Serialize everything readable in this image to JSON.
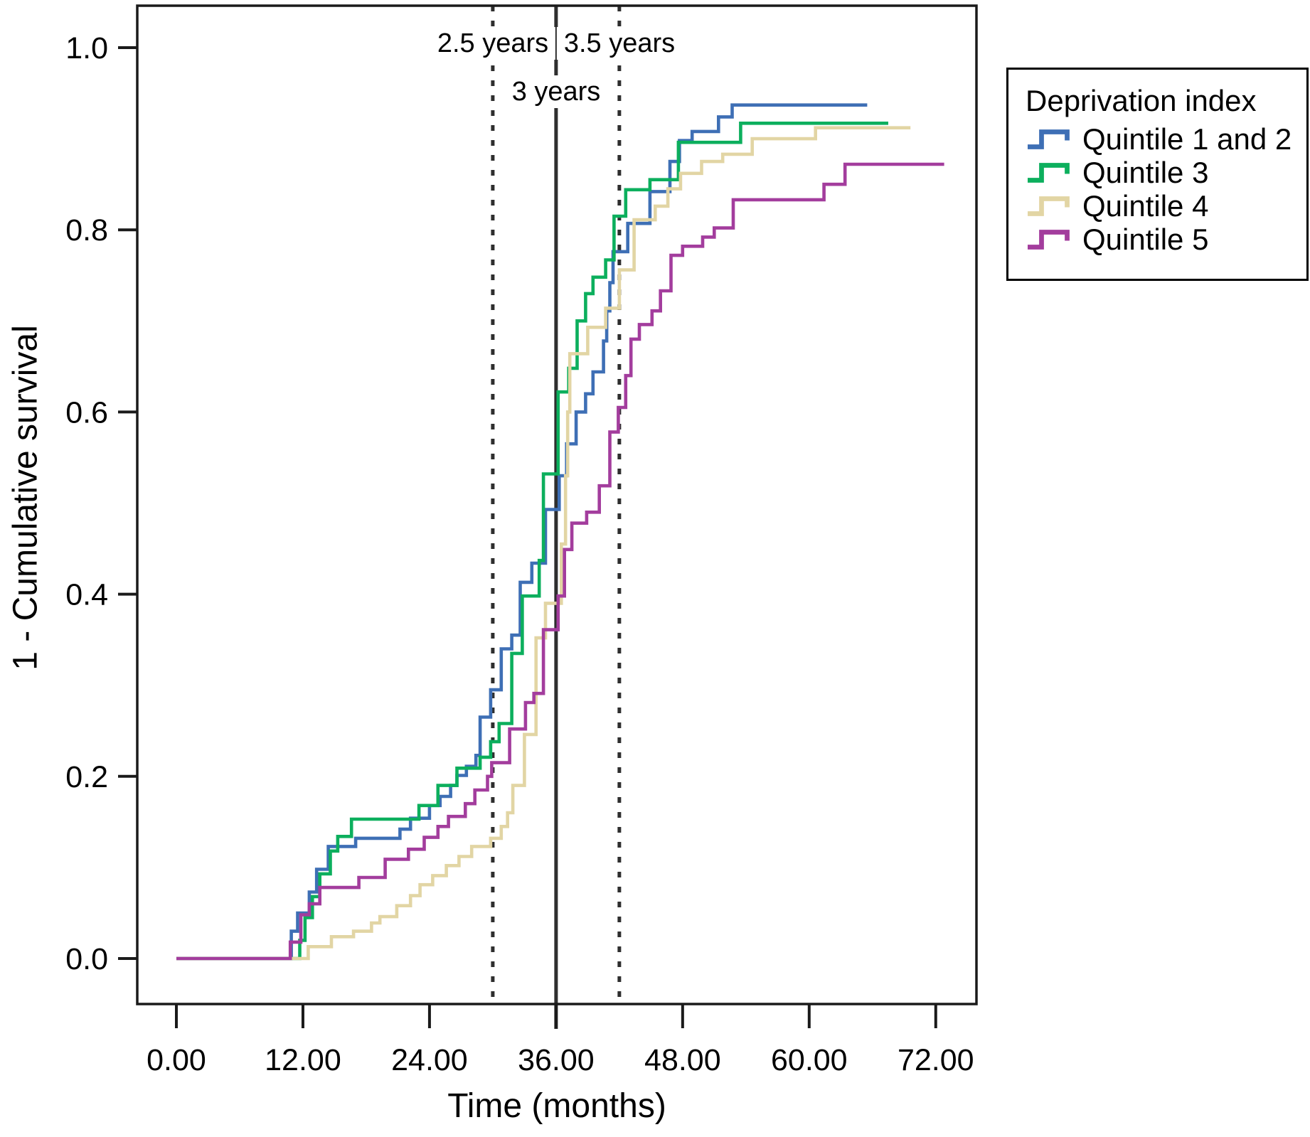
{
  "chart_data": {
    "type": "line",
    "subtype": "step-after",
    "title": "",
    "xlabel": "Time (months)",
    "ylabel": "1 - Cumulative survival",
    "grid": false,
    "xlim": [
      -3.7,
      75.9
    ],
    "ylim": [
      -0.05,
      1.046
    ],
    "x_ticks": [
      0,
      12,
      24,
      36,
      48,
      60,
      72
    ],
    "x_tick_labels": [
      "0.00",
      "12.00",
      "24.00",
      "36.00",
      "48.00",
      "60.00",
      "72.00"
    ],
    "y_ticks": [
      0.0,
      0.2,
      0.4,
      0.6,
      0.8,
      1.0
    ],
    "y_tick_labels": [
      "0.0",
      "0.2",
      "0.4",
      "0.6",
      "0.8",
      "1.0"
    ],
    "legend": {
      "title": "Deprivation index",
      "position": "outside-top-right"
    },
    "annotations": [
      {
        "label": "2.5 years",
        "style": "dotted",
        "x_months": 30
      },
      {
        "label": "3 years",
        "style": "solid",
        "x_months": 36
      },
      {
        "label": "3.5 years",
        "style": "dotted",
        "x_months": 42
      }
    ],
    "colors": {
      "axis": "#1a1a1a",
      "reference_line": "#2e2e2e",
      "text": "#000000"
    },
    "series": [
      {
        "name": "Quintile 1 and 2",
        "color": "#3e6fb5",
        "points": [
          [
            0,
            0
          ],
          [
            10.9,
            0.03
          ],
          [
            11.5,
            0.05
          ],
          [
            12.6,
            0.073
          ],
          [
            13.3,
            0.098
          ],
          [
            14.4,
            0.123
          ],
          [
            17,
            0.132
          ],
          [
            21.2,
            0.142
          ],
          [
            22.2,
            0.154
          ],
          [
            24,
            0.168
          ],
          [
            25,
            0.178
          ],
          [
            26,
            0.19
          ],
          [
            26.6,
            0.201
          ],
          [
            27.5,
            0.211
          ],
          [
            28.4,
            0.223
          ],
          [
            28.8,
            0.265
          ],
          [
            29.8,
            0.295
          ],
          [
            30.8,
            0.34
          ],
          [
            31.8,
            0.355
          ],
          [
            32.6,
            0.413
          ],
          [
            33.7,
            0.434
          ],
          [
            35,
            0.493
          ],
          [
            36.3,
            0.53
          ],
          [
            37,
            0.565
          ],
          [
            37.9,
            0.6
          ],
          [
            38.8,
            0.62
          ],
          [
            39.5,
            0.644
          ],
          [
            40.5,
            0.678
          ],
          [
            40.8,
            0.711
          ],
          [
            41.1,
            0.742
          ],
          [
            41.4,
            0.776
          ],
          [
            42.8,
            0.807
          ],
          [
            44.9,
            0.842
          ],
          [
            46.8,
            0.875
          ],
          [
            47.7,
            0.898
          ],
          [
            48.9,
            0.908
          ],
          [
            51.4,
            0.924
          ],
          [
            52.7,
            0.937
          ],
          [
            65.5,
            0.937
          ]
        ]
      },
      {
        "name": "Quintile 3",
        "color": "#0caf5d",
        "points": [
          [
            0,
            0
          ],
          [
            11.7,
            0.02
          ],
          [
            12.2,
            0.045
          ],
          [
            12.9,
            0.068
          ],
          [
            13.6,
            0.093
          ],
          [
            14.6,
            0.118
          ],
          [
            15.3,
            0.134
          ],
          [
            16.6,
            0.153
          ],
          [
            23,
            0.168
          ],
          [
            24.8,
            0.19
          ],
          [
            26.6,
            0.209
          ],
          [
            28.8,
            0.221
          ],
          [
            29.8,
            0.238
          ],
          [
            30.6,
            0.258
          ],
          [
            31.8,
            0.335
          ],
          [
            32.8,
            0.398
          ],
          [
            34.4,
            0.437
          ],
          [
            34.8,
            0.532
          ],
          [
            36.2,
            0.622
          ],
          [
            37.2,
            0.648
          ],
          [
            38,
            0.7
          ],
          [
            38.8,
            0.73
          ],
          [
            39.5,
            0.748
          ],
          [
            40.7,
            0.767
          ],
          [
            41.5,
            0.815
          ],
          [
            42.6,
            0.844
          ],
          [
            44.9,
            0.855
          ],
          [
            47.6,
            0.896
          ],
          [
            53.5,
            0.917
          ],
          [
            67.5,
            0.917
          ]
        ]
      },
      {
        "name": "Quintile 4",
        "color": "#e2d5a4",
        "points": [
          [
            0,
            0
          ],
          [
            12.5,
            0.013
          ],
          [
            14.7,
            0.024
          ],
          [
            16.8,
            0.03
          ],
          [
            18.5,
            0.039
          ],
          [
            19.3,
            0.046
          ],
          [
            20.9,
            0.058
          ],
          [
            22.2,
            0.069
          ],
          [
            23.1,
            0.081
          ],
          [
            24.3,
            0.091
          ],
          [
            25.6,
            0.102
          ],
          [
            26.8,
            0.112
          ],
          [
            28,
            0.123
          ],
          [
            29.8,
            0.132
          ],
          [
            30.8,
            0.145
          ],
          [
            31.4,
            0.16
          ],
          [
            31.9,
            0.19
          ],
          [
            33,
            0.246
          ],
          [
            34.1,
            0.352
          ],
          [
            35,
            0.39
          ],
          [
            36.5,
            0.455
          ],
          [
            36.9,
            0.53
          ],
          [
            37.1,
            0.6
          ],
          [
            37.3,
            0.664
          ],
          [
            39,
            0.693
          ],
          [
            40.7,
            0.714
          ],
          [
            42,
            0.756
          ],
          [
            43.4,
            0.811
          ],
          [
            45.4,
            0.826
          ],
          [
            46.6,
            0.845
          ],
          [
            47.8,
            0.862
          ],
          [
            49.8,
            0.875
          ],
          [
            51.8,
            0.883
          ],
          [
            54.6,
            0.9
          ],
          [
            60.6,
            0.912
          ],
          [
            69.6,
            0.912
          ]
        ]
      },
      {
        "name": "Quintile 5",
        "color": "#a33d9d",
        "points": [
          [
            0,
            0
          ],
          [
            10.8,
            0.018
          ],
          [
            11.8,
            0.048
          ],
          [
            12.6,
            0.06
          ],
          [
            13.6,
            0.078
          ],
          [
            17.3,
            0.089
          ],
          [
            19.8,
            0.109
          ],
          [
            22,
            0.12
          ],
          [
            23.5,
            0.133
          ],
          [
            24.8,
            0.145
          ],
          [
            25.8,
            0.156
          ],
          [
            27.4,
            0.17
          ],
          [
            28.3,
            0.185
          ],
          [
            29.5,
            0.2
          ],
          [
            29.9,
            0.215
          ],
          [
            31.6,
            0.252
          ],
          [
            33.1,
            0.281
          ],
          [
            33.9,
            0.291
          ],
          [
            34.8,
            0.361
          ],
          [
            36.2,
            0.398
          ],
          [
            36.8,
            0.449
          ],
          [
            37.5,
            0.478
          ],
          [
            38.9,
            0.49
          ],
          [
            40.1,
            0.519
          ],
          [
            41.1,
            0.578
          ],
          [
            41.9,
            0.605
          ],
          [
            42.6,
            0.64
          ],
          [
            43.1,
            0.68
          ],
          [
            43.9,
            0.696
          ],
          [
            45.1,
            0.711
          ],
          [
            45.9,
            0.733
          ],
          [
            46.9,
            0.772
          ],
          [
            48,
            0.782
          ],
          [
            49.9,
            0.792
          ],
          [
            51,
            0.802
          ],
          [
            52.8,
            0.833
          ],
          [
            61.4,
            0.85
          ],
          [
            63.4,
            0.872
          ],
          [
            72.8,
            0.872
          ]
        ]
      }
    ]
  }
}
